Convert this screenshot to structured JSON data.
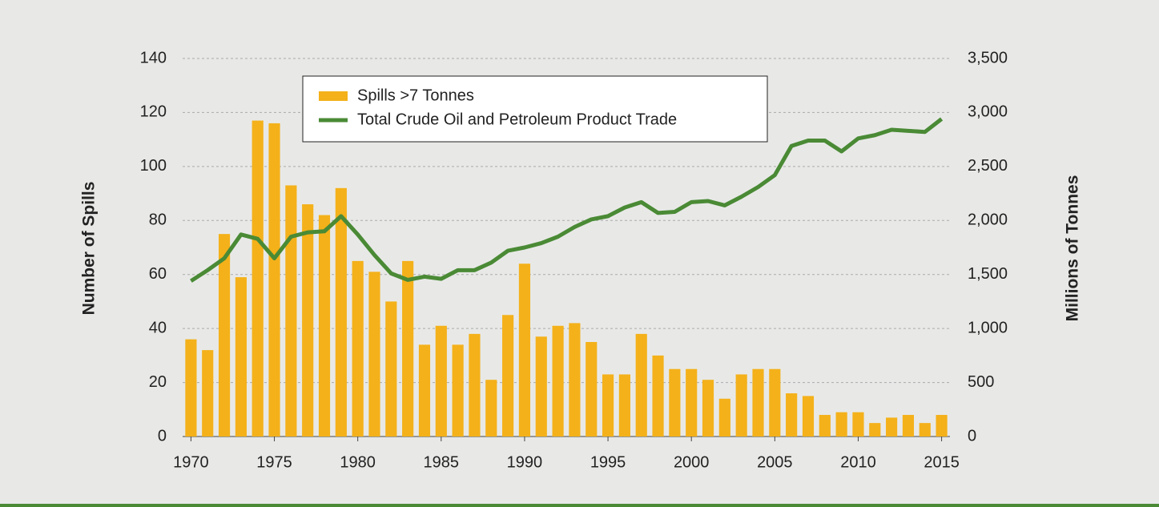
{
  "chart_data": {
    "type": "bar_line",
    "y_label": "Number of Spills",
    "y2_label": "Millions of Tonnes",
    "x": [
      1970,
      1971,
      1972,
      1973,
      1974,
      1975,
      1976,
      1977,
      1978,
      1979,
      1980,
      1981,
      1982,
      1983,
      1984,
      1985,
      1986,
      1987,
      1988,
      1989,
      1990,
      1991,
      1992,
      1993,
      1994,
      1995,
      1996,
      1997,
      1998,
      1999,
      2000,
      2001,
      2002,
      2003,
      2004,
      2005,
      2006,
      2007,
      2008,
      2009,
      2010,
      2011,
      2012,
      2013,
      2014,
      2015
    ],
    "xlim": [
      1969.5,
      2015.5
    ],
    "xticks": [
      1970,
      1975,
      1980,
      1985,
      1990,
      1995,
      2000,
      2005,
      2010,
      2015
    ],
    "ylim": [
      0,
      140
    ],
    "yticks": [
      0,
      20,
      40,
      60,
      80,
      100,
      120,
      140
    ],
    "y2lim": [
      0,
      3500
    ],
    "y2ticks": [
      0,
      {
        "value": 500,
        "label": "500"
      },
      {
        "value": 1000,
        "label": "1,000"
      },
      {
        "value": 1500,
        "label": "1,500"
      },
      {
        "value": 2000,
        "label": "2,000"
      },
      {
        "value": 2500,
        "label": "2,500"
      },
      {
        "value": 3000,
        "label": "3,000"
      },
      {
        "value": 3500,
        "label": "3,500"
      }
    ],
    "grid": true,
    "series": [
      {
        "name": "Spills >7 Tonnes",
        "type": "bar",
        "color": "#f4b11a",
        "values": [
          36,
          32,
          75,
          59,
          117,
          116,
          93,
          86,
          82,
          92,
          65,
          61,
          50,
          65,
          34,
          41,
          34,
          38,
          21,
          45,
          64,
          37,
          41,
          42,
          35,
          23,
          23,
          38,
          30,
          25,
          25,
          21,
          14,
          23,
          25,
          25,
          16,
          15,
          8,
          9,
          9,
          5,
          7,
          8,
          5,
          8
        ]
      },
      {
        "name": "Total Crude Oil and Petroleum Product Trade",
        "type": "line",
        "axis": "y2",
        "color": "#4a8a35",
        "values": [
          1440,
          1540,
          1650,
          1870,
          1830,
          1650,
          1850,
          1890,
          1900,
          2040,
          1870,
          1680,
          1510,
          1450,
          1480,
          1460,
          1540,
          1540,
          1610,
          1720,
          1750,
          1790,
          1850,
          1940,
          2010,
          2040,
          2120,
          2170,
          2070,
          2080,
          2170,
          2180,
          2140,
          2220,
          2310,
          2420,
          2690,
          2740,
          2740,
          2640,
          2760,
          2790,
          2840,
          2830,
          2820,
          2940
        ]
      }
    ]
  }
}
